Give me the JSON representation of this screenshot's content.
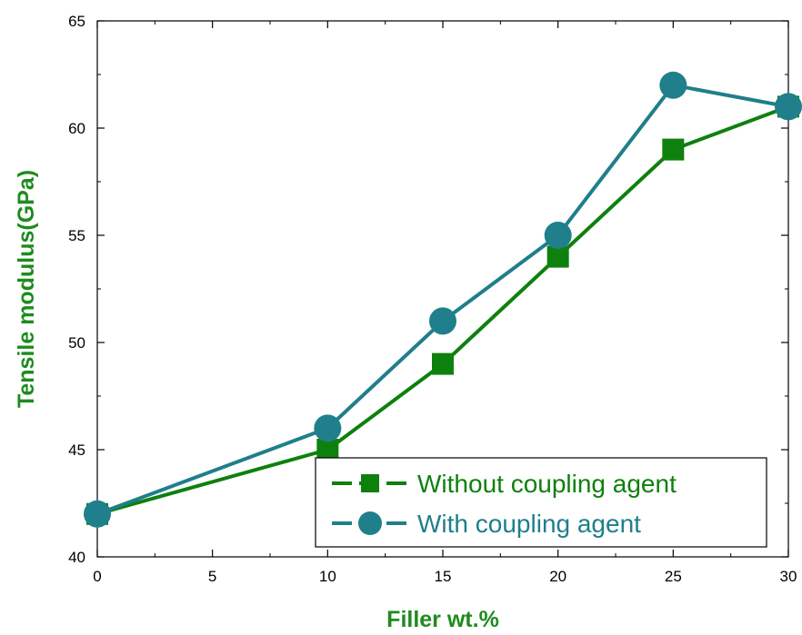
{
  "chart_data": {
    "type": "line",
    "title": "",
    "xlabel": "Filler wt.%",
    "ylabel": "Tensile modulus(GPa)",
    "xlim": [
      0,
      30
    ],
    "ylim": [
      40,
      65
    ],
    "x_ticks": [
      0,
      5,
      10,
      15,
      20,
      25,
      30
    ],
    "x_tick_labels": [
      "0",
      "5",
      "10",
      "15",
      "20",
      "25",
      "30"
    ],
    "y_ticks": [
      40,
      45,
      50,
      55,
      60,
      65
    ],
    "y_tick_labels": [
      "40",
      "45",
      "50",
      "55",
      "60",
      "65"
    ],
    "grid": false,
    "legend_position": "bottom-right",
    "axis_title_color": "#1e8b1e",
    "series": [
      {
        "name": "Without coupling agent",
        "x": [
          0,
          10,
          15,
          20,
          25,
          30
        ],
        "y": [
          42,
          45,
          49,
          54,
          59,
          61
        ],
        "color": "#0e800e",
        "marker": "square"
      },
      {
        "name": "With coupling agent",
        "x": [
          0,
          10,
          15,
          20,
          25,
          30
        ],
        "y": [
          42,
          46,
          51,
          55,
          62,
          61
        ],
        "color": "#1f7f8a",
        "marker": "circle"
      }
    ]
  }
}
